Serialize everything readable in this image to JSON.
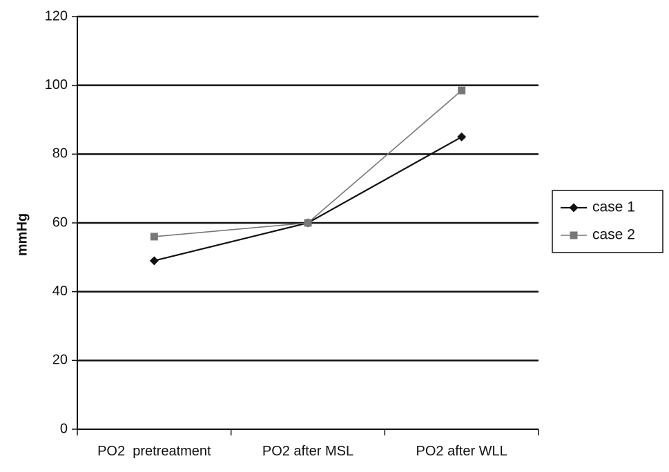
{
  "chart_data": {
    "type": "line",
    "title": "",
    "xlabel": "",
    "ylabel": "mmHg",
    "categories": [
      "PO2  pretreatment",
      "PO2 after MSL",
      "PO2 after WLL"
    ],
    "ylim": [
      0,
      120
    ],
    "yticks": [
      0,
      20,
      40,
      60,
      80,
      100,
      120
    ],
    "grid": true,
    "legend_position": "right",
    "series": [
      {
        "name": "case 1",
        "values": [
          49,
          60,
          85
        ],
        "marker": "diamond",
        "color": "#111111"
      },
      {
        "name": "case 2",
        "values": [
          56,
          60,
          98.5
        ],
        "marker": "square",
        "color": "#777777"
      }
    ]
  }
}
